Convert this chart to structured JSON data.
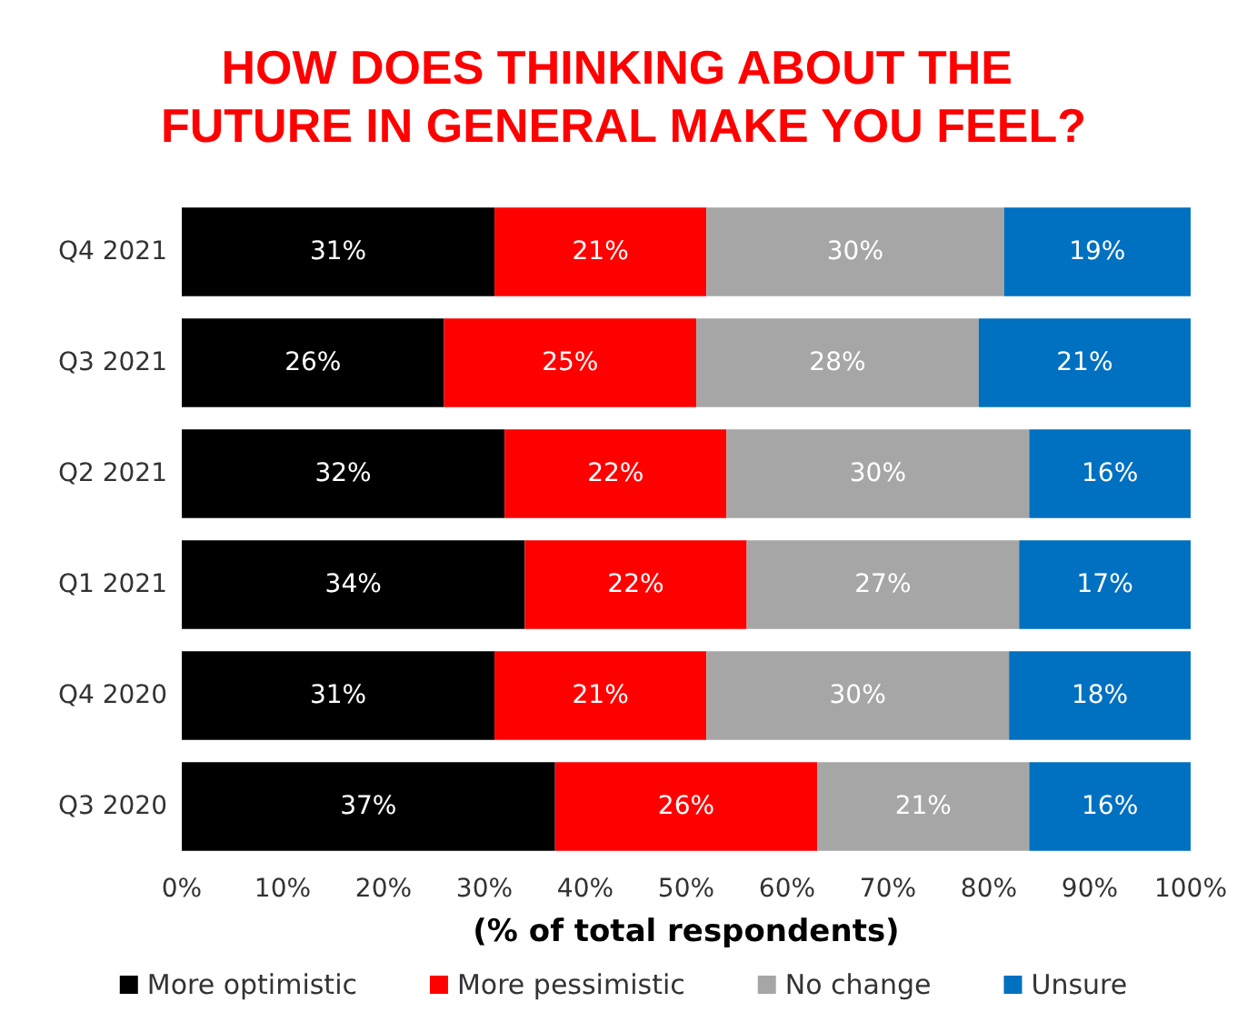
{
  "chart_data": {
    "type": "bar",
    "title": "HOW DOES THINKING ABOUT THE FUTURE IN GENERAL MAKE YOU FEEL?",
    "xlabel": "(% of total respondents)",
    "orientation": "horizontal",
    "stacked": true,
    "categories": [
      "Q4 2021",
      "Q3 2021",
      "Q2 2021",
      "Q1 2021",
      "Q4 2020",
      "Q3 2020"
    ],
    "series": [
      {
        "name": "More optimistic",
        "color": "#000000",
        "values": [
          31,
          26,
          32,
          34,
          31,
          37
        ],
        "value_labels": [
          "31%",
          "26%",
          "32%",
          "34%",
          "31%",
          "37%"
        ]
      },
      {
        "name": "More pessimistic",
        "color": "#ff0000",
        "values": [
          21,
          25,
          22,
          22,
          21,
          26
        ],
        "value_labels": [
          "21%",
          "25%",
          "22%",
          "22%",
          "21%",
          "26%"
        ]
      },
      {
        "name": "No change",
        "color": "#a6a6a6",
        "values": [
          29.5,
          28,
          30,
          27,
          30,
          21
        ],
        "value_labels": [
          "30%",
          "28%",
          "30%",
          "27%",
          "30%",
          "21%"
        ]
      },
      {
        "name": "Unsure",
        "color": "#0070c0",
        "values": [
          18.5,
          21,
          16,
          17,
          18,
          16
        ],
        "value_labels": [
          "19%",
          "21%",
          "16%",
          "17%",
          "18%",
          "16%"
        ]
      }
    ],
    "xlim": [
      0,
      100
    ],
    "xticks": [
      {
        "value": 0,
        "label": "0%"
      },
      {
        "value": 10,
        "label": "10%"
      },
      {
        "value": 20,
        "label": "20%"
      },
      {
        "value": 30,
        "label": "30%"
      },
      {
        "value": 40,
        "label": "40%"
      },
      {
        "value": 50,
        "label": "50%"
      },
      {
        "value": 60,
        "label": "60%"
      },
      {
        "value": 70,
        "label": "70%"
      },
      {
        "value": 80,
        "label": "80%"
      },
      {
        "value": 90,
        "label": "90%"
      },
      {
        "value": 100,
        "label": "100%"
      }
    ],
    "grid": false,
    "legend": "bottom"
  }
}
